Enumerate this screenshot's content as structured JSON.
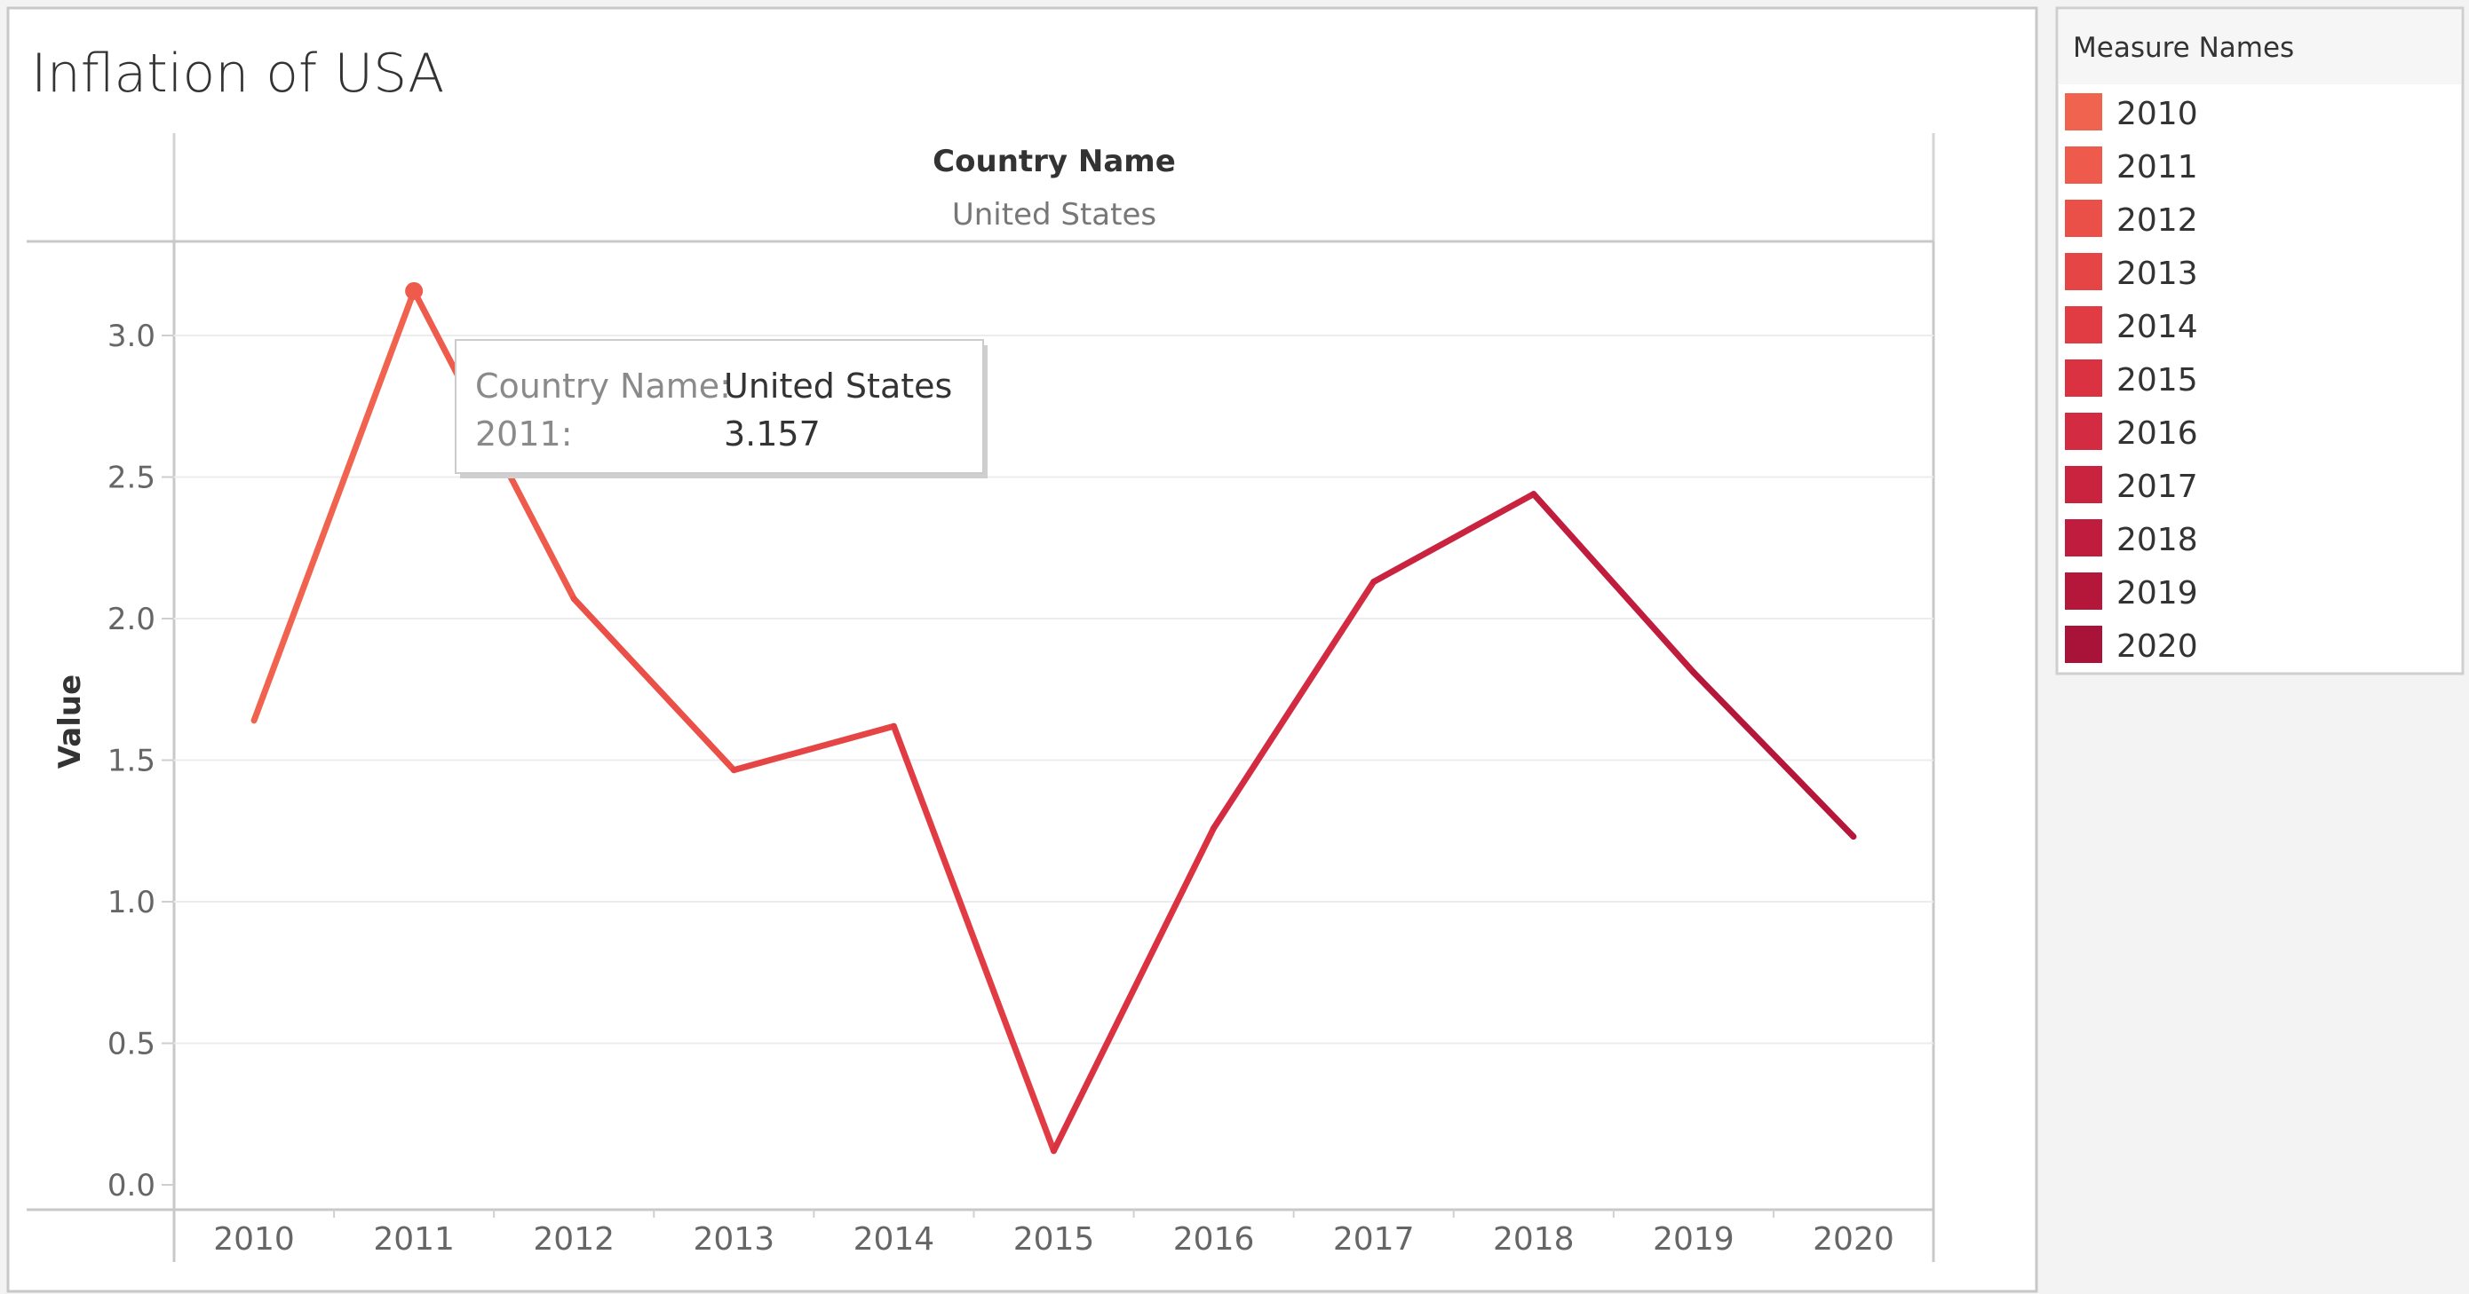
{
  "sheet": {
    "title": "Inflation of USA"
  },
  "column_header": {
    "field": "Country Name",
    "value": "United States"
  },
  "legend": {
    "title": "Measure Names",
    "items": [
      {
        "label": "2010",
        "color": "#F0644F"
      },
      {
        "label": "2011",
        "color": "#EE5A4C"
      },
      {
        "label": "2012",
        "color": "#EA5048"
      },
      {
        "label": "2013",
        "color": "#E64545"
      },
      {
        "label": "2014",
        "color": "#E13C44"
      },
      {
        "label": "2015",
        "color": "#DB3242"
      },
      {
        "label": "2016",
        "color": "#D32B41"
      },
      {
        "label": "2017",
        "color": "#CA233F"
      },
      {
        "label": "2018",
        "color": "#C01C3D"
      },
      {
        "label": "2019",
        "color": "#B5173B"
      },
      {
        "label": "2020",
        "color": "#A91239"
      }
    ]
  },
  "tooltip": {
    "rows": [
      {
        "label": "Country Name:",
        "value": "United States"
      },
      {
        "label": "2011:",
        "value": "3.157"
      }
    ]
  },
  "chart_data": {
    "type": "line",
    "title": "Inflation of USA",
    "categories": [
      "2010",
      "2011",
      "2012",
      "2013",
      "2014",
      "2015",
      "2016",
      "2017",
      "2018",
      "2019",
      "2020"
    ],
    "series": [
      {
        "values": [
          1.64,
          3.157,
          2.07,
          1.465,
          1.62,
          0.12,
          1.26,
          2.13,
          2.44,
          1.81,
          1.23
        ]
      }
    ],
    "ylabel": "Value",
    "xlabel": "",
    "ylim": [
      0,
      3.3
    ],
    "yticks": [
      "0.0",
      "0.5",
      "1.0",
      "1.5",
      "2.0",
      "2.5",
      "3.0"
    ],
    "grid": true,
    "highlighted_point": "2011"
  }
}
